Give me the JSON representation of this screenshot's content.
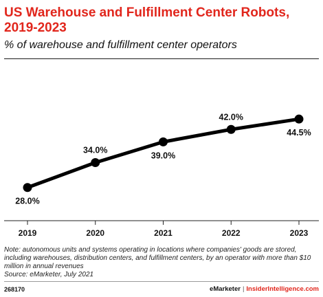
{
  "header": {
    "title": "US Warehouse and Fulfillment Center Robots, 2019-2023",
    "subtitle": "% of warehouse and fulfillment center operators"
  },
  "chart_data": {
    "type": "line",
    "x": [
      "2019",
      "2020",
      "2021",
      "2022",
      "2023"
    ],
    "series": [
      {
        "values": [
          28.0,
          34.0,
          39.0,
          42.0,
          44.5
        ],
        "labels": [
          "28.0%",
          "34.0%",
          "39.0%",
          "42.0%",
          "44.5%"
        ],
        "label_positions": [
          "below",
          "above",
          "below",
          "above",
          "below"
        ]
      }
    ],
    "ylim": [
      20,
      50
    ],
    "grid": false,
    "legend": "none",
    "line_color": "#000000"
  },
  "notes": {
    "note": "Note: autonomous units and systems operating in locations where companies' goods are stored, including warehouses, distribution centers, and fulfillment centers, by an operator with more than $10 million in annual revenues",
    "source": "Source: eMarketer, July 2021"
  },
  "footer": {
    "chart_id": "268170",
    "brand": "eMarketer",
    "separator": "|",
    "site": "InsiderIntelligence.com"
  },
  "colors": {
    "accent": "#e1261c"
  }
}
